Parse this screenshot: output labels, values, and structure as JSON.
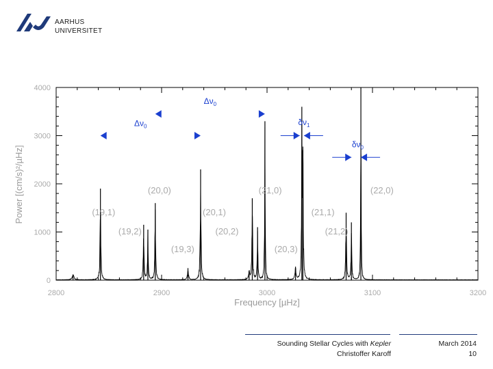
{
  "header": {
    "logo_line1": "AARHUS",
    "logo_line2": "UNIVERSITET"
  },
  "footer": {
    "title_prefix": "Sounding Stellar Cycles with ",
    "title_italic": "Kepler",
    "author": "Christoffer Karoff",
    "date": "March 2014",
    "page_number": "10"
  },
  "colors": {
    "brand": "#1f3a7a",
    "annotation": "#1a3fcf",
    "plot": "#000000",
    "axis_text": "#aaaaaa"
  },
  "chart_data": {
    "type": "line",
    "title": "",
    "xlabel": "Frequency [µHz]",
    "ylabel": "Power [(cm/s)²/µHz]",
    "xlim": [
      2800,
      3200
    ],
    "ylim": [
      0,
      4000
    ],
    "xticks": [
      2800,
      2900,
      3000,
      3100,
      3200
    ],
    "xtick_labels": [
      "2800",
      "2900",
      "3000",
      "3100",
      "3200"
    ],
    "yticks": [
      0,
      1000,
      2000,
      3000,
      4000
    ],
    "ytick_labels": [
      "0",
      "1000",
      "2000",
      "3000",
      "4000"
    ],
    "grid": false,
    "series": [
      {
        "peaks": [
          {
            "x": 2816,
            "y": 120,
            "w": 2.0
          },
          {
            "x": 2842,
            "y": 1900,
            "w": 0.9
          },
          {
            "x": 2883,
            "y": 1150,
            "w": 0.9
          },
          {
            "x": 2887,
            "y": 1050,
            "w": 0.8
          },
          {
            "x": 2894,
            "y": 1600,
            "w": 0.9
          },
          {
            "x": 2925,
            "y": 250,
            "w": 1.2
          },
          {
            "x": 2937,
            "y": 2300,
            "w": 0.9
          },
          {
            "x": 2983,
            "y": 200,
            "w": 1.2
          },
          {
            "x": 2986,
            "y": 1700,
            "w": 0.9
          },
          {
            "x": 2991,
            "y": 1100,
            "w": 0.8
          },
          {
            "x": 2998,
            "y": 3300,
            "w": 0.7
          },
          {
            "x": 3027,
            "y": 280,
            "w": 1.2
          },
          {
            "x": 3033,
            "y": 3600,
            "w": 0.7
          },
          {
            "x": 3034,
            "y": 2700,
            "w": 0.8
          },
          {
            "x": 3075,
            "y": 1400,
            "w": 0.9
          },
          {
            "x": 3080,
            "y": 1200,
            "w": 0.8
          },
          {
            "x": 3089,
            "y": 4000,
            "w": 0.6
          }
        ]
      }
    ],
    "mode_labels": [
      {
        "text": "(19,1)",
        "x": 2845,
        "y": 1350
      },
      {
        "text": "(19,2)",
        "x": 2870,
        "y": 950
      },
      {
        "text": "(19,3)",
        "x": 2920,
        "y": 580
      },
      {
        "text": "(20,0)",
        "x": 2898,
        "y": 1800
      },
      {
        "text": "(20,1)",
        "x": 2950,
        "y": 1350
      },
      {
        "text": "(20,2)",
        "x": 2962,
        "y": 950
      },
      {
        "text": "(20,3)",
        "x": 3018,
        "y": 580
      },
      {
        "text": "(21,0)",
        "x": 3003,
        "y": 1800
      },
      {
        "text": "(21,1)",
        "x": 3053,
        "y": 1350
      },
      {
        "text": "(21,2)",
        "x": 3066,
        "y": 950
      },
      {
        "text": "(22,0)",
        "x": 3109,
        "y": 1800
      }
    ],
    "spacing_annotations": [
      {
        "label_base": "Δν",
        "label_sub": "0",
        "x1": 2842,
        "x2": 2937,
        "y": 3000,
        "label_x": 2880,
        "label_y": 3200
      },
      {
        "label_base": "Δν",
        "label_sub": "0",
        "x1": 2894,
        "x2": 2998,
        "y": 3450,
        "label_x": 2946,
        "label_y": 3660
      },
      {
        "label_base": "δν",
        "label_sub": "1",
        "x1": 3031,
        "x2": 3035,
        "y": 3000,
        "label_x": 3035,
        "label_y": 3220
      },
      {
        "label_base": "δν",
        "label_sub": "0",
        "x1": 3080,
        "x2": 3089,
        "y": 2550,
        "label_x": 3086,
        "label_y": 2760
      }
    ]
  }
}
